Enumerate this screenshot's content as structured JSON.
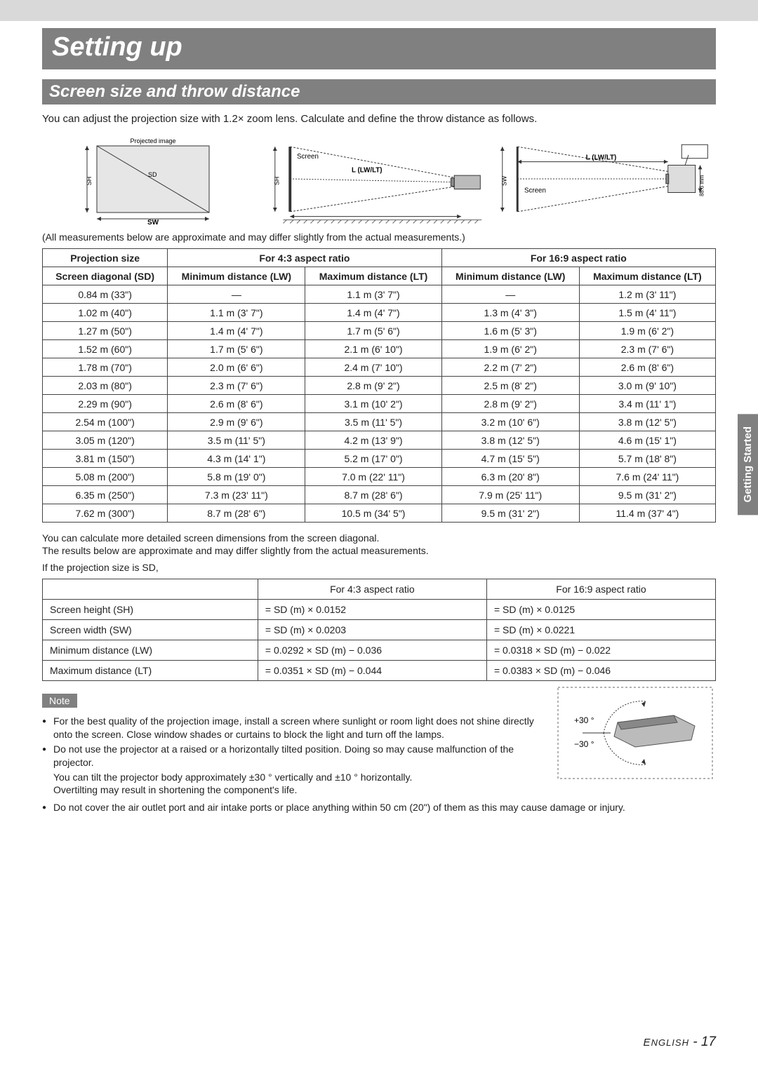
{
  "page": {
    "title": "Setting up",
    "section": "Screen size and throw distance",
    "intro": "You can adjust the projection size with 1.2× zoom lens. Calculate and define the throw distance as follows.",
    "approx_note": "(All measurements below are approximate and may differ slightly from the actual measurements.)",
    "side_tab": "Getting Started",
    "footer_lang": "English",
    "footer_page": "17"
  },
  "diagram_labels": {
    "projected_image": "Projected image",
    "sh": "SH",
    "sd": "SD",
    "sw": "SW",
    "screen": "Screen",
    "l": "L (LW/LT)",
    "mm": "88.6 mm"
  },
  "main_table": {
    "h_projection": "Projection size",
    "h_43": "For 4:3 aspect ratio",
    "h_169": "For 16:9 aspect ratio",
    "h_sd": "Screen diagonal (SD)",
    "h_min": "Minimum distance (LW)",
    "h_max": "Maximum distance (LT)",
    "rows": [
      [
        "0.84 m  (33\")",
        "—",
        "1.1 m  (3' 7\")",
        "—",
        "1.2 m  (3' 11\")"
      ],
      [
        "1.02 m  (40\")",
        "1.1 m  (3' 7\")",
        "1.4 m  (4' 7\")",
        "1.3 m  (4' 3\")",
        "1.5 m  (4' 11\")"
      ],
      [
        "1.27 m  (50\")",
        "1.4 m  (4' 7\")",
        "1.7 m  (5' 6\")",
        "1.6 m  (5' 3\")",
        "1.9 m  (6' 2\")"
      ],
      [
        "1.52 m  (60\")",
        "1.7 m  (5' 6\")",
        "2.1 m  (6' 10\")",
        "1.9 m  (6' 2\")",
        "2.3 m  (7' 6\")"
      ],
      [
        "1.78 m  (70\")",
        "2.0 m  (6' 6\")",
        "2.4 m  (7' 10\")",
        "2.2 m  (7' 2\")",
        "2.6 m  (8' 6\")"
      ],
      [
        "2.03 m  (80\")",
        "2.3 m  (7' 6\")",
        "2.8 m  (9' 2\")",
        "2.5 m  (8' 2\")",
        "3.0 m  (9' 10\")"
      ],
      [
        "2.29 m  (90\")",
        "2.6 m  (8' 6\")",
        "3.1 m  (10' 2\")",
        "2.8 m  (9' 2\")",
        "3.4 m  (11' 1\")"
      ],
      [
        "2.54 m  (100\")",
        "2.9 m  (9' 6\")",
        "3.5 m  (11' 5\")",
        "3.2 m  (10' 6\")",
        "3.8 m  (12' 5\")"
      ],
      [
        "3.05 m  (120\")",
        "3.5 m  (11' 5\")",
        "4.2 m  (13' 9\")",
        "3.8 m  (12' 5\")",
        "4.6 m  (15' 1\")"
      ],
      [
        "3.81 m  (150\")",
        "4.3 m  (14' 1\")",
        "5.2 m  (17' 0\")",
        "4.7 m  (15' 5\")",
        "5.7 m  (18' 8\")"
      ],
      [
        "5.08 m  (200\")",
        "5.8 m  (19' 0\")",
        "7.0 m  (22' 11\")",
        "6.3 m  (20' 8\")",
        "7.6 m  (24' 11\")"
      ],
      [
        "6.35 m  (250\")",
        "7.3 m  (23' 11\")",
        "8.7 m  (28' 6\")",
        "7.9 m  (25' 11\")",
        "9.5 m  (31' 2\")"
      ],
      [
        "7.62 m  (300\")",
        "8.7 m  (28' 6\")",
        "10.5 m  (34' 5\")",
        "9.5 m  (31' 2\")",
        "11.4 m  (37' 4\")"
      ]
    ]
  },
  "calc_text": {
    "line1": "You can calculate more detailed screen dimensions from the screen diagonal.",
    "line2": "The results below are approximate and may differ slightly from the actual measurements.",
    "line3": "If the projection size is SD,"
  },
  "formula_table": {
    "h_43": "For 4:3 aspect ratio",
    "h_169": "For 16:9 aspect ratio",
    "rows": [
      [
        "Screen height (SH)",
        "= SD (m) × 0.0152",
        "= SD (m) × 0.0125"
      ],
      [
        "Screen width (SW)",
        "= SD (m) × 0.0203",
        "= SD (m) × 0.0221"
      ],
      [
        "Minimum distance (LW)",
        "= 0.0292 × SD (m) − 0.036",
        "= 0.0318 × SD (m) − 0.022"
      ],
      [
        "Maximum distance (LT)",
        "= 0.0351 × SD (m) − 0.044",
        "= 0.0383 × SD (m) − 0.046"
      ]
    ]
  },
  "notes": {
    "tag": "Note",
    "n1": "For the best quality of the projection image, install a screen where sunlight or room light does not shine directly onto the screen. Close window shades or curtains to block the light and turn off the lamps.",
    "n2": "Do not use the projector at a raised or a horizontally tilted position. Doing so may cause malfunction of the projector.",
    "n2b": "You can tilt the projector body approximately ±30 ° vertically and ±10 ° horizontally.",
    "n2c": "Overtilting may result in shortening the component's life.",
    "n3": "Do not cover the air outlet port and air intake ports or place anything within 50 cm (20\") of them as this may cause damage or injury.",
    "tilt_plus": "+30 °",
    "tilt_minus": "−30 °"
  },
  "colors": {
    "gray": "#808080",
    "lightgray": "#d9d9d9",
    "text": "#222222",
    "border": "#444444"
  }
}
